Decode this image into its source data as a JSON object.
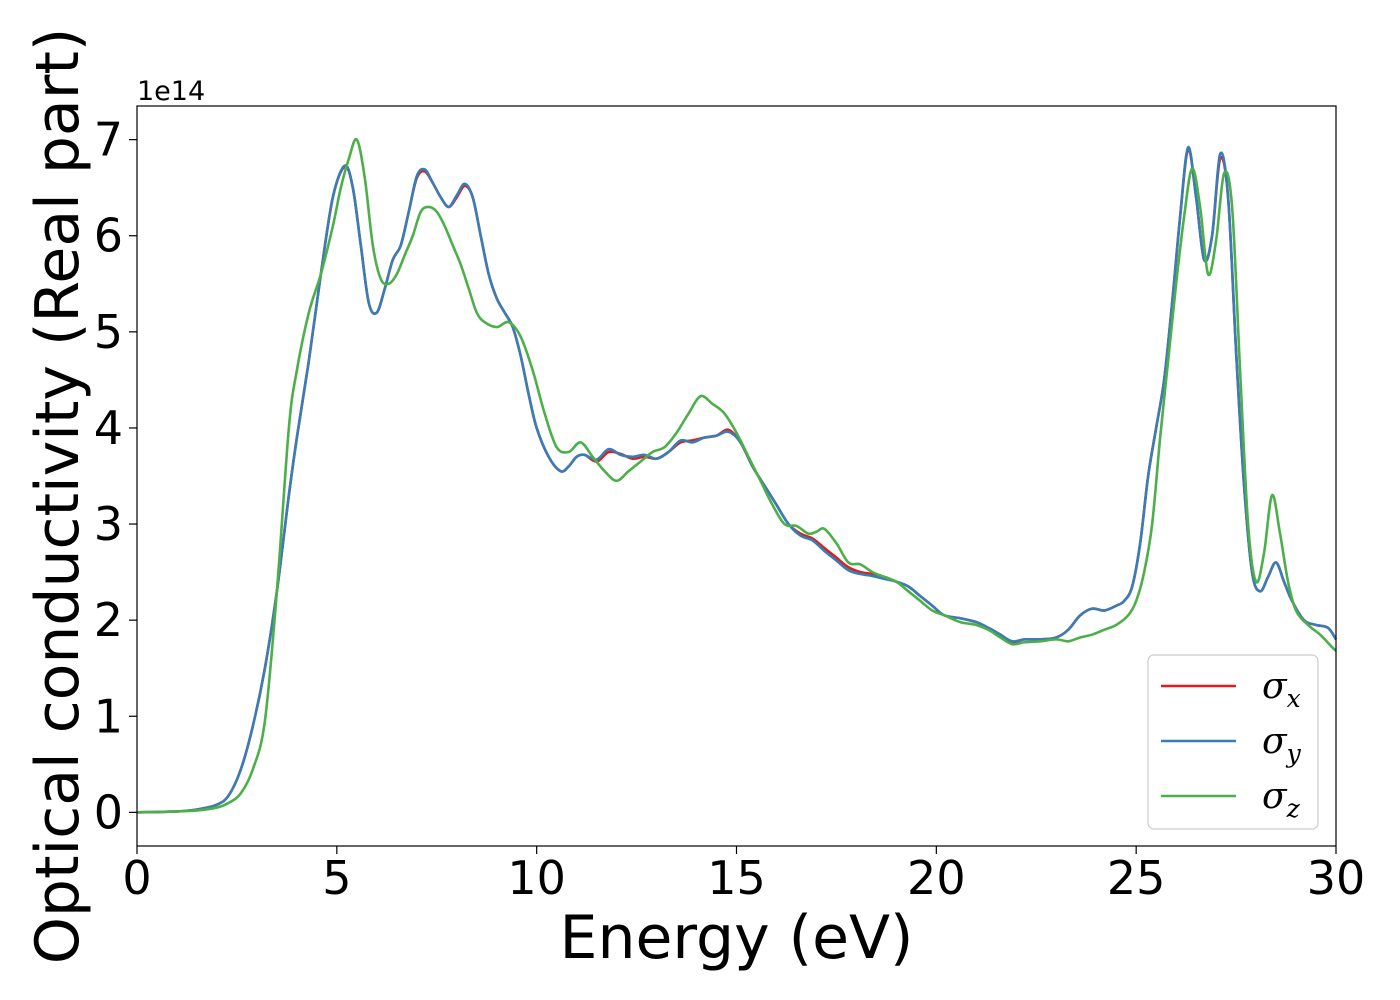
{
  "chart_data": {
    "type": "line",
    "xlabel": "Energy (eV)",
    "ylabel": "Optical conductivity (Real part)",
    "y_offset_label": "1e14",
    "y_scale_factor": 100000000000000.0,
    "xlim": [
      0,
      30
    ],
    "ylim": [
      -0.35,
      7.35
    ],
    "x_ticks": [
      0,
      5,
      10,
      15,
      20,
      25,
      30
    ],
    "y_ticks": [
      0,
      1,
      2,
      3,
      4,
      5,
      6,
      7
    ],
    "grid": false,
    "legend_position": "lower-right",
    "series": [
      {
        "name": "σx",
        "sub": "x",
        "color": "#e41a1c",
        "x": [
          0,
          1,
          1.5,
          2,
          2.3,
          2.6,
          2.9,
          3.2,
          3.5,
          3.8,
          4.0,
          4.3,
          4.6,
          4.9,
          5.2,
          5.4,
          5.6,
          5.8,
          6.0,
          6.2,
          6.4,
          6.6,
          6.8,
          7.0,
          7.2,
          7.4,
          7.6,
          7.8,
          8.0,
          8.2,
          8.4,
          8.6,
          8.8,
          9.0,
          9.2,
          9.4,
          9.6,
          9.8,
          10.0,
          10.3,
          10.6,
          10.8,
          11.0,
          11.2,
          11.5,
          11.8,
          12.1,
          12.4,
          12.7,
          13.0,
          13.3,
          13.6,
          13.9,
          14.2,
          14.5,
          14.8,
          15.1,
          15.4,
          15.7,
          16.0,
          16.3,
          16.6,
          16.9,
          17.2,
          17.5,
          17.8,
          18.1,
          18.4,
          18.7,
          19.0,
          19.3,
          19.6,
          19.9,
          20.2,
          20.6,
          21.0,
          21.3,
          21.6,
          21.9,
          22.2,
          22.6,
          23.0,
          23.3,
          23.6,
          23.9,
          24.2,
          24.5,
          24.7,
          24.9,
          25.1,
          25.3,
          25.5,
          25.7,
          25.9,
          26.1,
          26.3,
          26.5,
          26.7,
          26.9,
          27.1,
          27.3,
          27.5,
          27.7,
          27.9,
          28.1,
          28.3,
          28.5,
          28.7,
          28.9,
          29.2,
          29.5,
          29.8,
          30.0
        ],
        "values": [
          0,
          0.01,
          0.03,
          0.08,
          0.18,
          0.45,
          0.9,
          1.5,
          2.3,
          3.3,
          3.9,
          4.7,
          5.6,
          6.4,
          6.72,
          6.5,
          5.9,
          5.3,
          5.2,
          5.45,
          5.75,
          5.9,
          6.25,
          6.6,
          6.67,
          6.55,
          6.4,
          6.3,
          6.4,
          6.52,
          6.4,
          6.0,
          5.6,
          5.35,
          5.2,
          5.05,
          4.75,
          4.35,
          4.0,
          3.7,
          3.55,
          3.6,
          3.7,
          3.72,
          3.65,
          3.75,
          3.73,
          3.68,
          3.7,
          3.68,
          3.75,
          3.85,
          3.87,
          3.9,
          3.92,
          3.98,
          3.85,
          3.6,
          3.4,
          3.2,
          3.0,
          2.9,
          2.85,
          2.75,
          2.65,
          2.55,
          2.5,
          2.48,
          2.45,
          2.4,
          2.35,
          2.25,
          2.15,
          2.05,
          2.02,
          1.98,
          1.92,
          1.85,
          1.77,
          1.8,
          1.8,
          1.82,
          1.9,
          2.05,
          2.12,
          2.1,
          2.15,
          2.2,
          2.35,
          2.8,
          3.5,
          4.0,
          4.5,
          5.3,
          6.2,
          6.9,
          6.4,
          5.75,
          6.0,
          6.8,
          6.4,
          4.8,
          3.4,
          2.5,
          2.3,
          2.45,
          2.6,
          2.4,
          2.2,
          2.0,
          1.95,
          1.92,
          1.8
        ]
      },
      {
        "name": "σy",
        "sub": "y",
        "color": "#377eb8",
        "x": [
          0,
          1,
          1.5,
          2,
          2.3,
          2.6,
          2.9,
          3.2,
          3.5,
          3.8,
          4.0,
          4.3,
          4.6,
          4.9,
          5.2,
          5.4,
          5.6,
          5.8,
          6.0,
          6.2,
          6.4,
          6.6,
          6.8,
          7.0,
          7.2,
          7.4,
          7.6,
          7.8,
          8.0,
          8.2,
          8.4,
          8.6,
          8.8,
          9.0,
          9.2,
          9.4,
          9.6,
          9.8,
          10.0,
          10.3,
          10.6,
          10.8,
          11.0,
          11.2,
          11.5,
          11.8,
          12.1,
          12.4,
          12.7,
          13.0,
          13.3,
          13.6,
          13.9,
          14.2,
          14.5,
          14.8,
          15.1,
          15.4,
          15.7,
          16.0,
          16.3,
          16.6,
          16.9,
          17.2,
          17.5,
          17.8,
          18.1,
          18.4,
          18.7,
          19.0,
          19.3,
          19.6,
          19.9,
          20.2,
          20.6,
          21.0,
          21.3,
          21.6,
          21.9,
          22.2,
          22.6,
          23.0,
          23.3,
          23.6,
          23.9,
          24.2,
          24.5,
          24.7,
          24.9,
          25.1,
          25.3,
          25.5,
          25.7,
          25.9,
          26.1,
          26.3,
          26.5,
          26.7,
          26.9,
          27.1,
          27.3,
          27.5,
          27.7,
          27.9,
          28.1,
          28.3,
          28.5,
          28.7,
          28.9,
          29.2,
          29.5,
          29.8,
          30.0
        ],
        "values": [
          0,
          0.01,
          0.03,
          0.08,
          0.18,
          0.45,
          0.9,
          1.5,
          2.3,
          3.3,
          3.9,
          4.7,
          5.6,
          6.4,
          6.73,
          6.5,
          5.9,
          5.3,
          5.2,
          5.45,
          5.75,
          5.9,
          6.25,
          6.62,
          6.69,
          6.55,
          6.4,
          6.3,
          6.42,
          6.54,
          6.4,
          6.0,
          5.6,
          5.35,
          5.2,
          5.05,
          4.75,
          4.35,
          4.0,
          3.7,
          3.55,
          3.6,
          3.7,
          3.72,
          3.67,
          3.78,
          3.72,
          3.7,
          3.72,
          3.68,
          3.75,
          3.87,
          3.85,
          3.9,
          3.92,
          3.96,
          3.85,
          3.6,
          3.4,
          3.2,
          3.0,
          2.88,
          2.83,
          2.72,
          2.62,
          2.52,
          2.48,
          2.46,
          2.43,
          2.4,
          2.35,
          2.25,
          2.15,
          2.05,
          2.02,
          1.98,
          1.92,
          1.85,
          1.78,
          1.8,
          1.8,
          1.82,
          1.9,
          2.05,
          2.12,
          2.1,
          2.15,
          2.2,
          2.35,
          2.8,
          3.5,
          4.0,
          4.5,
          5.3,
          6.2,
          6.92,
          6.4,
          5.75,
          6.0,
          6.85,
          6.4,
          4.8,
          3.4,
          2.5,
          2.3,
          2.45,
          2.6,
          2.4,
          2.2,
          2.0,
          1.95,
          1.92,
          1.8
        ]
      },
      {
        "name": "σz",
        "sub": "z",
        "color": "#4daf4a",
        "x": [
          0,
          1,
          1.5,
          2,
          2.3,
          2.6,
          2.9,
          3.2,
          3.5,
          3.8,
          4.0,
          4.3,
          4.6,
          4.9,
          5.1,
          5.3,
          5.5,
          5.7,
          5.9,
          6.1,
          6.3,
          6.5,
          6.7,
          6.9,
          7.1,
          7.3,
          7.5,
          7.7,
          7.9,
          8.1,
          8.3,
          8.5,
          8.7,
          9.0,
          9.3,
          9.6,
          9.9,
          10.2,
          10.5,
          10.8,
          11.1,
          11.4,
          11.7,
          12.0,
          12.3,
          12.6,
          12.9,
          13.2,
          13.5,
          13.8,
          14.1,
          14.4,
          14.7,
          15.0,
          15.3,
          15.6,
          15.9,
          16.2,
          16.5,
          16.8,
          17.0,
          17.2,
          17.5,
          17.8,
          18.1,
          18.4,
          18.7,
          19.0,
          19.3,
          19.6,
          19.9,
          20.2,
          20.6,
          21.0,
          21.3,
          21.6,
          21.9,
          22.2,
          22.6,
          23.0,
          23.3,
          23.6,
          23.9,
          24.2,
          24.5,
          24.8,
          25.0,
          25.2,
          25.4,
          25.6,
          25.8,
          26.0,
          26.2,
          26.4,
          26.6,
          26.8,
          27.0,
          27.2,
          27.4,
          27.6,
          27.8,
          28.0,
          28.2,
          28.4,
          28.6,
          28.8,
          29.0,
          29.3,
          29.6,
          29.9,
          30.0
        ],
        "values": [
          0,
          0.01,
          0.02,
          0.05,
          0.1,
          0.2,
          0.45,
          0.95,
          2.3,
          4.0,
          4.6,
          5.2,
          5.6,
          6.1,
          6.5,
          6.8,
          7.0,
          6.6,
          5.9,
          5.55,
          5.5,
          5.6,
          5.8,
          6.0,
          6.25,
          6.3,
          6.25,
          6.1,
          5.9,
          5.7,
          5.45,
          5.2,
          5.1,
          5.05,
          5.1,
          4.95,
          4.6,
          4.15,
          3.8,
          3.75,
          3.85,
          3.7,
          3.55,
          3.45,
          3.55,
          3.65,
          3.75,
          3.8,
          3.95,
          4.15,
          4.33,
          4.25,
          4.15,
          3.95,
          3.7,
          3.45,
          3.2,
          3.0,
          2.98,
          2.9,
          2.92,
          2.95,
          2.8,
          2.6,
          2.58,
          2.5,
          2.45,
          2.4,
          2.3,
          2.2,
          2.1,
          2.05,
          1.98,
          1.95,
          1.9,
          1.82,
          1.75,
          1.77,
          1.78,
          1.8,
          1.78,
          1.82,
          1.85,
          1.9,
          1.95,
          2.05,
          2.2,
          2.5,
          3.0,
          3.9,
          4.7,
          5.5,
          6.2,
          6.7,
          6.3,
          5.6,
          5.95,
          6.65,
          6.3,
          4.6,
          3.0,
          2.4,
          2.7,
          3.3,
          2.9,
          2.4,
          2.1,
          1.95,
          1.85,
          1.72,
          1.68
        ]
      }
    ]
  }
}
